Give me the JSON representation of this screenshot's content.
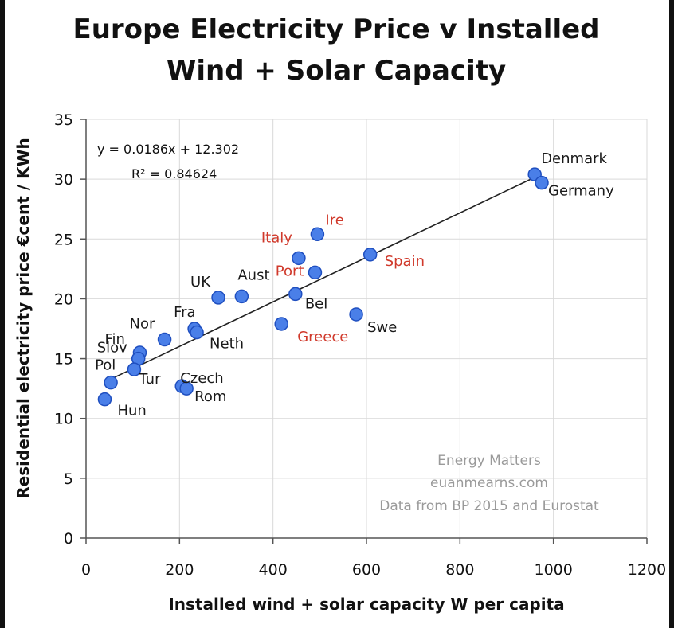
{
  "chart_data": {
    "type": "scatter",
    "title_line1": "Europe Electricity Price v Installed",
    "title_line2": "Wind + Solar Capacity",
    "xlabel": "Installed wind + solar capacity W per capita",
    "ylabel": "Residential electricity price €cent / KWh",
    "xlim": [
      0,
      1200
    ],
    "ylim": [
      0,
      35
    ],
    "x_ticks": [
      0,
      200,
      400,
      600,
      800,
      1000,
      1200
    ],
    "y_ticks": [
      0,
      5,
      10,
      15,
      20,
      25,
      30,
      35
    ],
    "grid": true,
    "trendline": {
      "slope": 0.0186,
      "intercept": 12.302,
      "x_range": [
        40,
        970
      ]
    },
    "equation_text": "y = 0.0186x + 12.302",
    "r2_text": "R² = 0.84624",
    "points": [
      {
        "label": "Denmark",
        "x": 960,
        "y": 30.4,
        "highlight": false
      },
      {
        "label": "Germany",
        "x": 975,
        "y": 29.7,
        "highlight": false
      },
      {
        "label": "Ire",
        "x": 495,
        "y": 25.4,
        "highlight": true
      },
      {
        "label": "Italy",
        "x": 455,
        "y": 23.4,
        "highlight": true
      },
      {
        "label": "Spain",
        "x": 608,
        "y": 23.7,
        "highlight": true
      },
      {
        "label": "Port",
        "x": 490,
        "y": 22.2,
        "highlight": true
      },
      {
        "label": "UK",
        "x": 283,
        "y": 20.1,
        "highlight": false
      },
      {
        "label": "Aust",
        "x": 333,
        "y": 20.2,
        "highlight": false
      },
      {
        "label": "Bel",
        "x": 448,
        "y": 20.4,
        "highlight": false
      },
      {
        "label": "Swe",
        "x": 578,
        "y": 18.7,
        "highlight": false
      },
      {
        "label": "Greece",
        "x": 418,
        "y": 17.9,
        "highlight": true
      },
      {
        "label": "Fra",
        "x": 232,
        "y": 17.5,
        "highlight": false
      },
      {
        "label": "Neth",
        "x": 237,
        "y": 17.2,
        "highlight": false
      },
      {
        "label": "Nor",
        "x": 168,
        "y": 16.6,
        "highlight": false
      },
      {
        "label": "Fin",
        "x": 115,
        "y": 15.5,
        "highlight": false
      },
      {
        "label": "Slov",
        "x": 112,
        "y": 15.0,
        "highlight": false
      },
      {
        "label": "Pol",
        "x": 53,
        "y": 13.0,
        "highlight": false
      },
      {
        "label": "Tur",
        "x": 103,
        "y": 14.1,
        "highlight": false
      },
      {
        "label": "Hun",
        "x": 40,
        "y": 11.6,
        "highlight": false
      },
      {
        "label": "Czech",
        "x": 205,
        "y": 12.7,
        "highlight": false
      },
      {
        "label": "Rom",
        "x": 215,
        "y": 12.5,
        "highlight": false
      }
    ],
    "watermark_lines": [
      "Energy Matters",
      "euanmearns.com",
      "Data from BP 2015 and Eurostat"
    ],
    "colors": {
      "point_fill": "#4a7fe8",
      "point_stroke": "#1f4fc0",
      "highlight_label": "#d0392b",
      "normal_label": "#1a1a1a",
      "grid": "#d9d9d9",
      "watermark": "#9a9a9a"
    }
  }
}
